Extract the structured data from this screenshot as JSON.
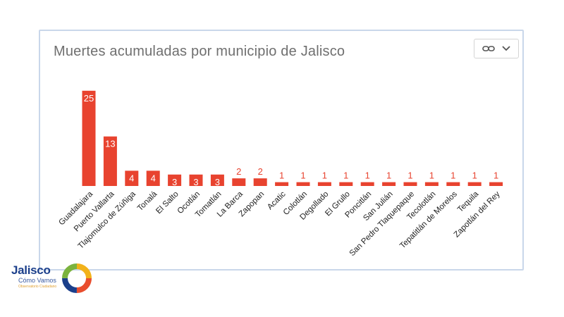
{
  "chart_data": {
    "type": "bar",
    "title": "Muertes acumuladas por municipio de Jalisco",
    "categories": [
      "Guadalajara",
      "Puerto Vallarta",
      "Tlajomulco de Zúñiga",
      "Tonalá",
      "El Salto",
      "Ocotlán",
      "Tomatlán",
      "La Barca",
      "Zapopan",
      "Acatic",
      "Colotlán",
      "Degollado",
      "El Grullo",
      "Poncitlán",
      "San Julián",
      "San Pedro Tlaquepaque",
      "Tecolotlán",
      "Tepatitlán de Morelos",
      "Tequila",
      "Zapotlán del Rey"
    ],
    "values": [
      25,
      13,
      4,
      4,
      3,
      3,
      3,
      2,
      2,
      1,
      1,
      1,
      1,
      1,
      1,
      1,
      1,
      1,
      1,
      1
    ],
    "xlabel": "",
    "ylabel": "",
    "ylim": [
      0,
      27
    ],
    "grid": false,
    "bar_color": "#e8432f",
    "label_color_inside": "#ffffff",
    "label_color_outside": "#e8432f"
  },
  "menu": {
    "link_icon": "link-icon",
    "dropdown_icon": "chevron-down-icon"
  },
  "logo": {
    "name": "Jalisco",
    "subtitle": "Cómo Vamos",
    "tagline": "Observatorio Ciudadano",
    "colors": [
      "#f2b21a",
      "#e94e2e",
      "#1b3f8b",
      "#7bb33e"
    ]
  }
}
